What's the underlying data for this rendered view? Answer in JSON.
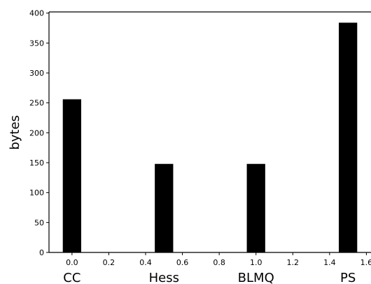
{
  "chart_data": {
    "type": "bar",
    "title": "",
    "xlabel": "",
    "ylabel": "bytes",
    "x_positions": [
      0.0,
      0.5,
      1.0,
      1.5
    ],
    "categories": [
      "CC",
      "Hess",
      "BLMQ",
      "PS"
    ],
    "values": [
      256,
      148,
      148,
      384
    ],
    "bar_width": 0.1,
    "xlim": [
      -0.125,
      1.625
    ],
    "ylim": [
      0,
      402
    ],
    "xticks": [
      "0.0",
      "0.2",
      "0.4",
      "0.6",
      "0.8",
      "1.0",
      "1.2",
      "1.4",
      "1.6"
    ],
    "yticks": [
      "0",
      "50",
      "100",
      "150",
      "200",
      "250",
      "300",
      "350",
      "400"
    ],
    "bar_color": "#000000",
    "grid": false,
    "legend": "none"
  }
}
